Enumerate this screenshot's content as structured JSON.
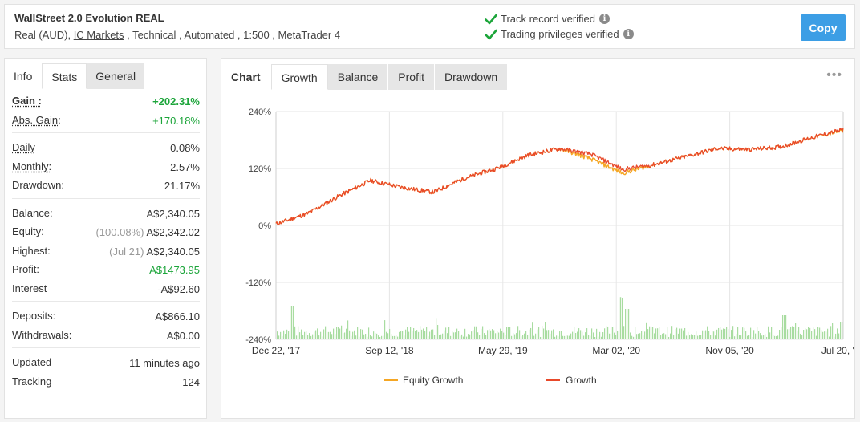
{
  "header": {
    "title": "WallStreet 2.0 Evolution REAL",
    "sub_prefix": "Real (AUD), ",
    "broker": "IC Markets",
    "sub_suffix": " , Technical , Automated , 1:500 , MetaTrader 4",
    "verify1": "Track record verified",
    "verify2": "Trading privileges verified",
    "info_glyph": "i",
    "copy_label": "Copy"
  },
  "left_tabs": [
    "Info",
    "Stats",
    "General"
  ],
  "stats": {
    "gain": {
      "label": "Gain :",
      "value": "+202.31%"
    },
    "abs_gain": {
      "label": "Abs. Gain:",
      "value": "+170.18%"
    },
    "daily": {
      "label": "Daily",
      "value": "0.08%"
    },
    "monthly": {
      "label": "Monthly:",
      "value": "2.57%"
    },
    "drawdown": {
      "label": "Drawdown:",
      "value": "21.17%"
    },
    "balance": {
      "label": "Balance:",
      "value": "A$2,340.05"
    },
    "equity": {
      "label": "Equity:",
      "prefix": "(100.08%)",
      "value": "A$2,342.02"
    },
    "highest": {
      "label": "Highest:",
      "prefix": "(Jul 21)",
      "value": "A$2,340.05"
    },
    "profit": {
      "label": "Profit:",
      "value": "A$1473.95"
    },
    "interest": {
      "label": "Interest",
      "value": "-A$92.60"
    },
    "deposits": {
      "label": "Deposits:",
      "value": "A$866.10"
    },
    "withdrawals": {
      "label": "Withdrawals:",
      "value": "A$0.00"
    },
    "updated": {
      "label": "Updated",
      "value": "11 minutes ago"
    },
    "tracking": {
      "label": "Tracking",
      "value": "124"
    }
  },
  "chart_tabs": [
    "Chart",
    "Growth",
    "Balance",
    "Profit",
    "Drawdown"
  ],
  "chart_menu": "•••",
  "colors": {
    "growth": "#e8492a",
    "equity": "#f5a623",
    "volume": "#a8dca0",
    "accent": "#3c9ee5",
    "green_text": "#1ca53a"
  },
  "chart_data": {
    "type": "line",
    "y_ticks": [
      "240%",
      "120%",
      "0%",
      "-120%",
      "-240%"
    ],
    "ylim": [
      -240,
      240
    ],
    "x_ticks": [
      "Dec 22, '17",
      "Sep 12, '18",
      "May 29, '19",
      "Mar 02, '20",
      "Nov 05, '20",
      "Jul 20, '21"
    ],
    "series": [
      {
        "name": "Equity Growth",
        "color": "#f5a623",
        "x": [
          "Dec 22, '17",
          "Mar 2018",
          "Jun 2018",
          "Sep 12, '18",
          "Dec 2018",
          "Mar 2019",
          "May 29, '19",
          "Aug 2019",
          "Nov 2019",
          "Jan 2020",
          "Mar 02, '20",
          "Mar 2020",
          "Apr 2020",
          "Jun 2020",
          "Aug 2020",
          "Nov 05, '20",
          "Jan 2021",
          "Apr 2021",
          "Jul 20, '21"
        ],
        "values": [
          3,
          25,
          62,
          95,
          80,
          70,
          100,
          120,
          148,
          162,
          140,
          110,
          128,
          145,
          162,
          160,
          165,
          185,
          200
        ]
      },
      {
        "name": "Growth",
        "color": "#e8492a",
        "x": [
          "Dec 22, '17",
          "Mar 2018",
          "Jun 2018",
          "Sep 12, '18",
          "Dec 2018",
          "Mar 2019",
          "May 29, '19",
          "Aug 2019",
          "Nov 2019",
          "Jan 2020",
          "Mar 02, '20",
          "Mar 2020",
          "Apr 2020",
          "Jun 2020",
          "Aug 2020",
          "Nov 05, '20",
          "Jan 2021",
          "Apr 2021",
          "Jul 20, '21"
        ],
        "values": [
          3,
          25,
          62,
          95,
          80,
          70,
          100,
          120,
          148,
          162,
          150,
          118,
          128,
          145,
          162,
          160,
          165,
          185,
          202
        ]
      }
    ]
  }
}
